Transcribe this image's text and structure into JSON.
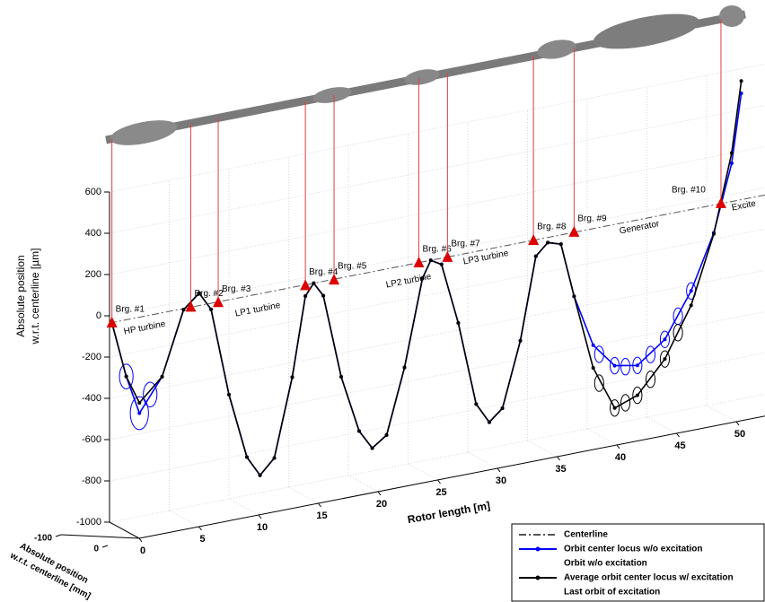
{
  "chart_data": {
    "type": "line3d",
    "ylabel": [
      "Absolute position",
      "w.r.t. centerline [µm]"
    ],
    "xlabel": "Rotor length [m]",
    "zlabel": [
      "Absolute position",
      "w.r.t. centerline [mm]"
    ],
    "xlim": [
      0,
      55
    ],
    "xticks": [
      0,
      5,
      10,
      15,
      20,
      25,
      30,
      35,
      40,
      45,
      50
    ],
    "ylim": [
      -1000,
      600
    ],
    "yticks": [
      -1000,
      -800,
      -600,
      -400,
      -200,
      0,
      200,
      400,
      600
    ],
    "zlim": [
      -100,
      0
    ],
    "zticks": [
      -100,
      0
    ],
    "grid": true,
    "x": [
      0.2,
      1.4,
      2.5,
      4.4,
      6.2,
      7.5,
      8.5,
      10,
      11.5,
      12.6,
      13.8,
      15.3,
      16.4,
      17.1,
      17.9,
      19.4,
      20.9,
      22,
      23.2,
      24.7,
      26.2,
      26.9,
      27.8,
      29.2,
      30.7,
      31.8,
      32.9,
      34.4,
      35.7,
      36.7,
      37.8,
      38.9,
      40.5,
      42.3,
      44.2,
      46.5,
      48.7,
      50.6,
      52.1,
      52.9
    ],
    "series": [
      {
        "name": "Centerline",
        "color": "#555555",
        "style": "dashdot",
        "x": [
          0,
          55
        ],
        "values": [
          -35,
          -35
        ]
      },
      {
        "name": "Orbit center locus w/o excitation",
        "color": "#0000ff",
        "style": "line-dot",
        "values": [
          -37,
          -310,
          -500,
          -345,
          -40,
          25,
          -65,
          -495,
          -815,
          -915,
          -845,
          -470,
          -90,
          -35,
          -105,
          -515,
          -795,
          -890,
          -840,
          -530,
          -115,
          -35,
          -65,
          -365,
          -775,
          -875,
          -820,
          -510,
          -115,
          -60,
          -80,
          -345,
          -600,
          -720,
          -740,
          -640,
          -430,
          -170,
          150,
          480
        ]
      },
      {
        "name": "Orbit w/o excitation",
        "color": "#0000ff",
        "style": "orbit",
        "x": [
          1.4,
          2.5,
          3.4,
          41,
          42.3,
          43.2,
          44.2,
          45.3,
          46.5,
          47.6,
          48.7
        ],
        "values": [
          -310,
          -500,
          -420,
          -650,
          -720,
          -735,
          -740,
          -700,
          -640,
          -540,
          -430
        ],
        "sizes": [
          60,
          80,
          60,
          40,
          40,
          40,
          40,
          40,
          40,
          40,
          40
        ]
      },
      {
        "name": "Average orbit center locus w/ excitation",
        "color": "#000000",
        "style": "line-dot",
        "values": [
          -37,
          -310,
          -450,
          -345,
          -40,
          25,
          -65,
          -495,
          -815,
          -915,
          -845,
          -470,
          -90,
          -35,
          -105,
          -515,
          -795,
          -890,
          -840,
          -530,
          -115,
          -35,
          -65,
          -365,
          -775,
          -875,
          -820,
          -510,
          -115,
          -60,
          -80,
          -345,
          -710,
          -925,
          -885,
          -735,
          -500,
          -175,
          200,
          540
        ]
      },
      {
        "name": "Last orbit of excitation",
        "color": "#000000",
        "style": "orbit",
        "x": [
          41,
          42.3,
          43.2,
          44.2,
          45.3,
          46.5,
          47.6
        ],
        "values": [
          -790,
          -925,
          -910,
          -885,
          -820,
          -735,
          -620
        ],
        "sizes": [
          40,
          40,
          40,
          40,
          40,
          40,
          40
        ]
      }
    ],
    "bearings": [
      {
        "label": "Brg. #1",
        "x": 0.2,
        "y": -37
      },
      {
        "label": "Brg. #2",
        "x": 6.8,
        "y": -35
      },
      {
        "label": "Brg. #3",
        "x": 9.1,
        "y": -39
      },
      {
        "label": "Brg. #4",
        "x": 16.4,
        "y": -39
      },
      {
        "label": "Brg. #5",
        "x": 18.8,
        "y": -39
      },
      {
        "label": "Brg. #6",
        "x": 25.9,
        "y": -36
      },
      {
        "label": "Brg. #7",
        "x": 28.3,
        "y": -37
      },
      {
        "label": "Brg. #8",
        "x": 35.5,
        "y": -36
      },
      {
        "label": "Brg. #9",
        "x": 38.9,
        "y": -35
      },
      {
        "label": "Brg. #10",
        "x": 51.2,
        "y": -35
      }
    ],
    "sections": [
      "HP turbine",
      "LP1 turbine",
      "LP2 turbine",
      "LP3 turbine",
      "Generator",
      "Excite"
    ]
  }
}
